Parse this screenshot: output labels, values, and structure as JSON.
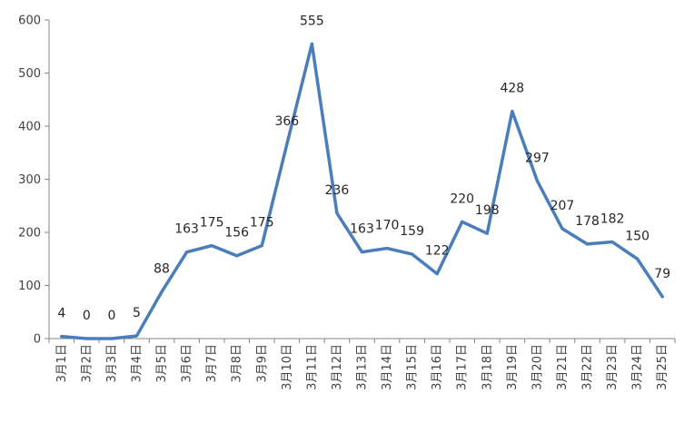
{
  "chart_data": {
    "type": "line",
    "title": "",
    "xlabel": "",
    "ylabel": "",
    "ylim": [
      0,
      600
    ],
    "yticks": [
      0,
      100,
      200,
      300,
      400,
      500,
      600
    ],
    "grid": false,
    "legend": "none",
    "categories": [
      "3月1日",
      "3月2日",
      "3月3日",
      "3月4日",
      "3月5日",
      "3月6日",
      "3月7日",
      "3月8日",
      "3月9日",
      "3月10日",
      "3月11日",
      "3月12日",
      "3月13日",
      "3月14日",
      "3月15日",
      "3月16日",
      "3月17日",
      "3月18日",
      "3月19日",
      "3月20日",
      "3月21日",
      "3月22日",
      "3月23日",
      "3月24日",
      "3月25日"
    ],
    "series": [
      {
        "values": [
          4,
          0,
          0,
          5,
          88,
          163,
          175,
          156,
          175,
          366,
          555,
          236,
          163,
          170,
          159,
          122,
          220,
          198,
          428,
          297,
          207,
          178,
          182,
          150,
          79
        ],
        "color": "#4a7ebb"
      }
    ]
  }
}
